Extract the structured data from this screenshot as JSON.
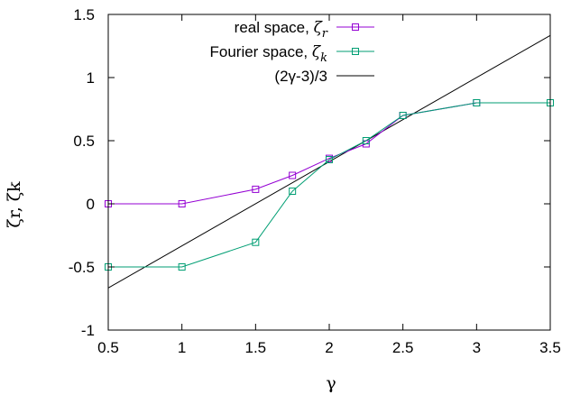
{
  "chart_data": {
    "type": "line",
    "xlabel": "γ",
    "ylabel": "ζr, ζk",
    "xlim": [
      0.5,
      3.5
    ],
    "ylim": [
      -1,
      1.5
    ],
    "xticks": [
      "0.5",
      "1",
      "1.5",
      "2",
      "2.5",
      "3",
      "3.5"
    ],
    "yticks": [
      "-1",
      "-0.5",
      "0",
      "0.5",
      "1",
      "1.5"
    ],
    "legend_position": "top-right",
    "grid": false,
    "series": [
      {
        "name": "real space, ζr",
        "name_prefix": "real space, ",
        "name_symbol": "ζ",
        "name_sub": "r",
        "color": "#9400d3",
        "marker": "square",
        "x": [
          0.5,
          1.0,
          1.5,
          1.75,
          2.0,
          2.25,
          2.5,
          3.0,
          3.5
        ],
        "y": [
          0.0,
          0.0,
          0.115,
          0.225,
          0.36,
          0.475,
          0.7,
          0.8,
          0.8
        ]
      },
      {
        "name": "Fourier space, ζk",
        "name_prefix": "Fourier space, ",
        "name_symbol": "ζ",
        "name_sub": "k",
        "color": "#009e73",
        "marker": "square",
        "x": [
          0.5,
          1.0,
          1.5,
          1.75,
          2.0,
          2.25,
          2.5,
          3.0,
          3.5
        ],
        "y": [
          -0.5,
          -0.5,
          -0.305,
          0.1,
          0.35,
          0.5,
          0.7,
          0.8,
          0.8
        ]
      },
      {
        "name": "(2γ-3)/3",
        "color": "#000000",
        "marker": "none",
        "x": [
          0.5,
          3.5
        ],
        "y": [
          -0.6667,
          1.3333
        ]
      }
    ]
  }
}
